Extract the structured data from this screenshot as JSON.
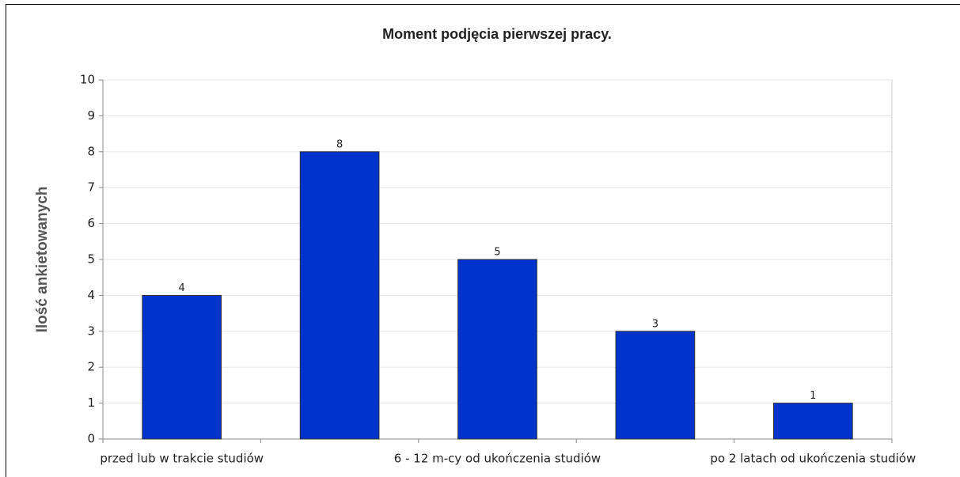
{
  "chart_data": {
    "type": "bar",
    "title": "Moment podjęcia pierwszej pracy.",
    "y_label": "Ilość ankietowanych",
    "categories": [
      "przed lub w trakcie studiów",
      null,
      "6 - 12 m-cy od ukończenia studiów",
      null,
      "po 2 latach od ukończenia studiów"
    ],
    "values": [
      4,
      8,
      5,
      3,
      1
    ],
    "color": "#0033cc",
    "ylim": [
      0,
      10
    ],
    "yticks": [
      0,
      1,
      2,
      3,
      4,
      5,
      6,
      7,
      8,
      9,
      10
    ],
    "grid": true
  }
}
